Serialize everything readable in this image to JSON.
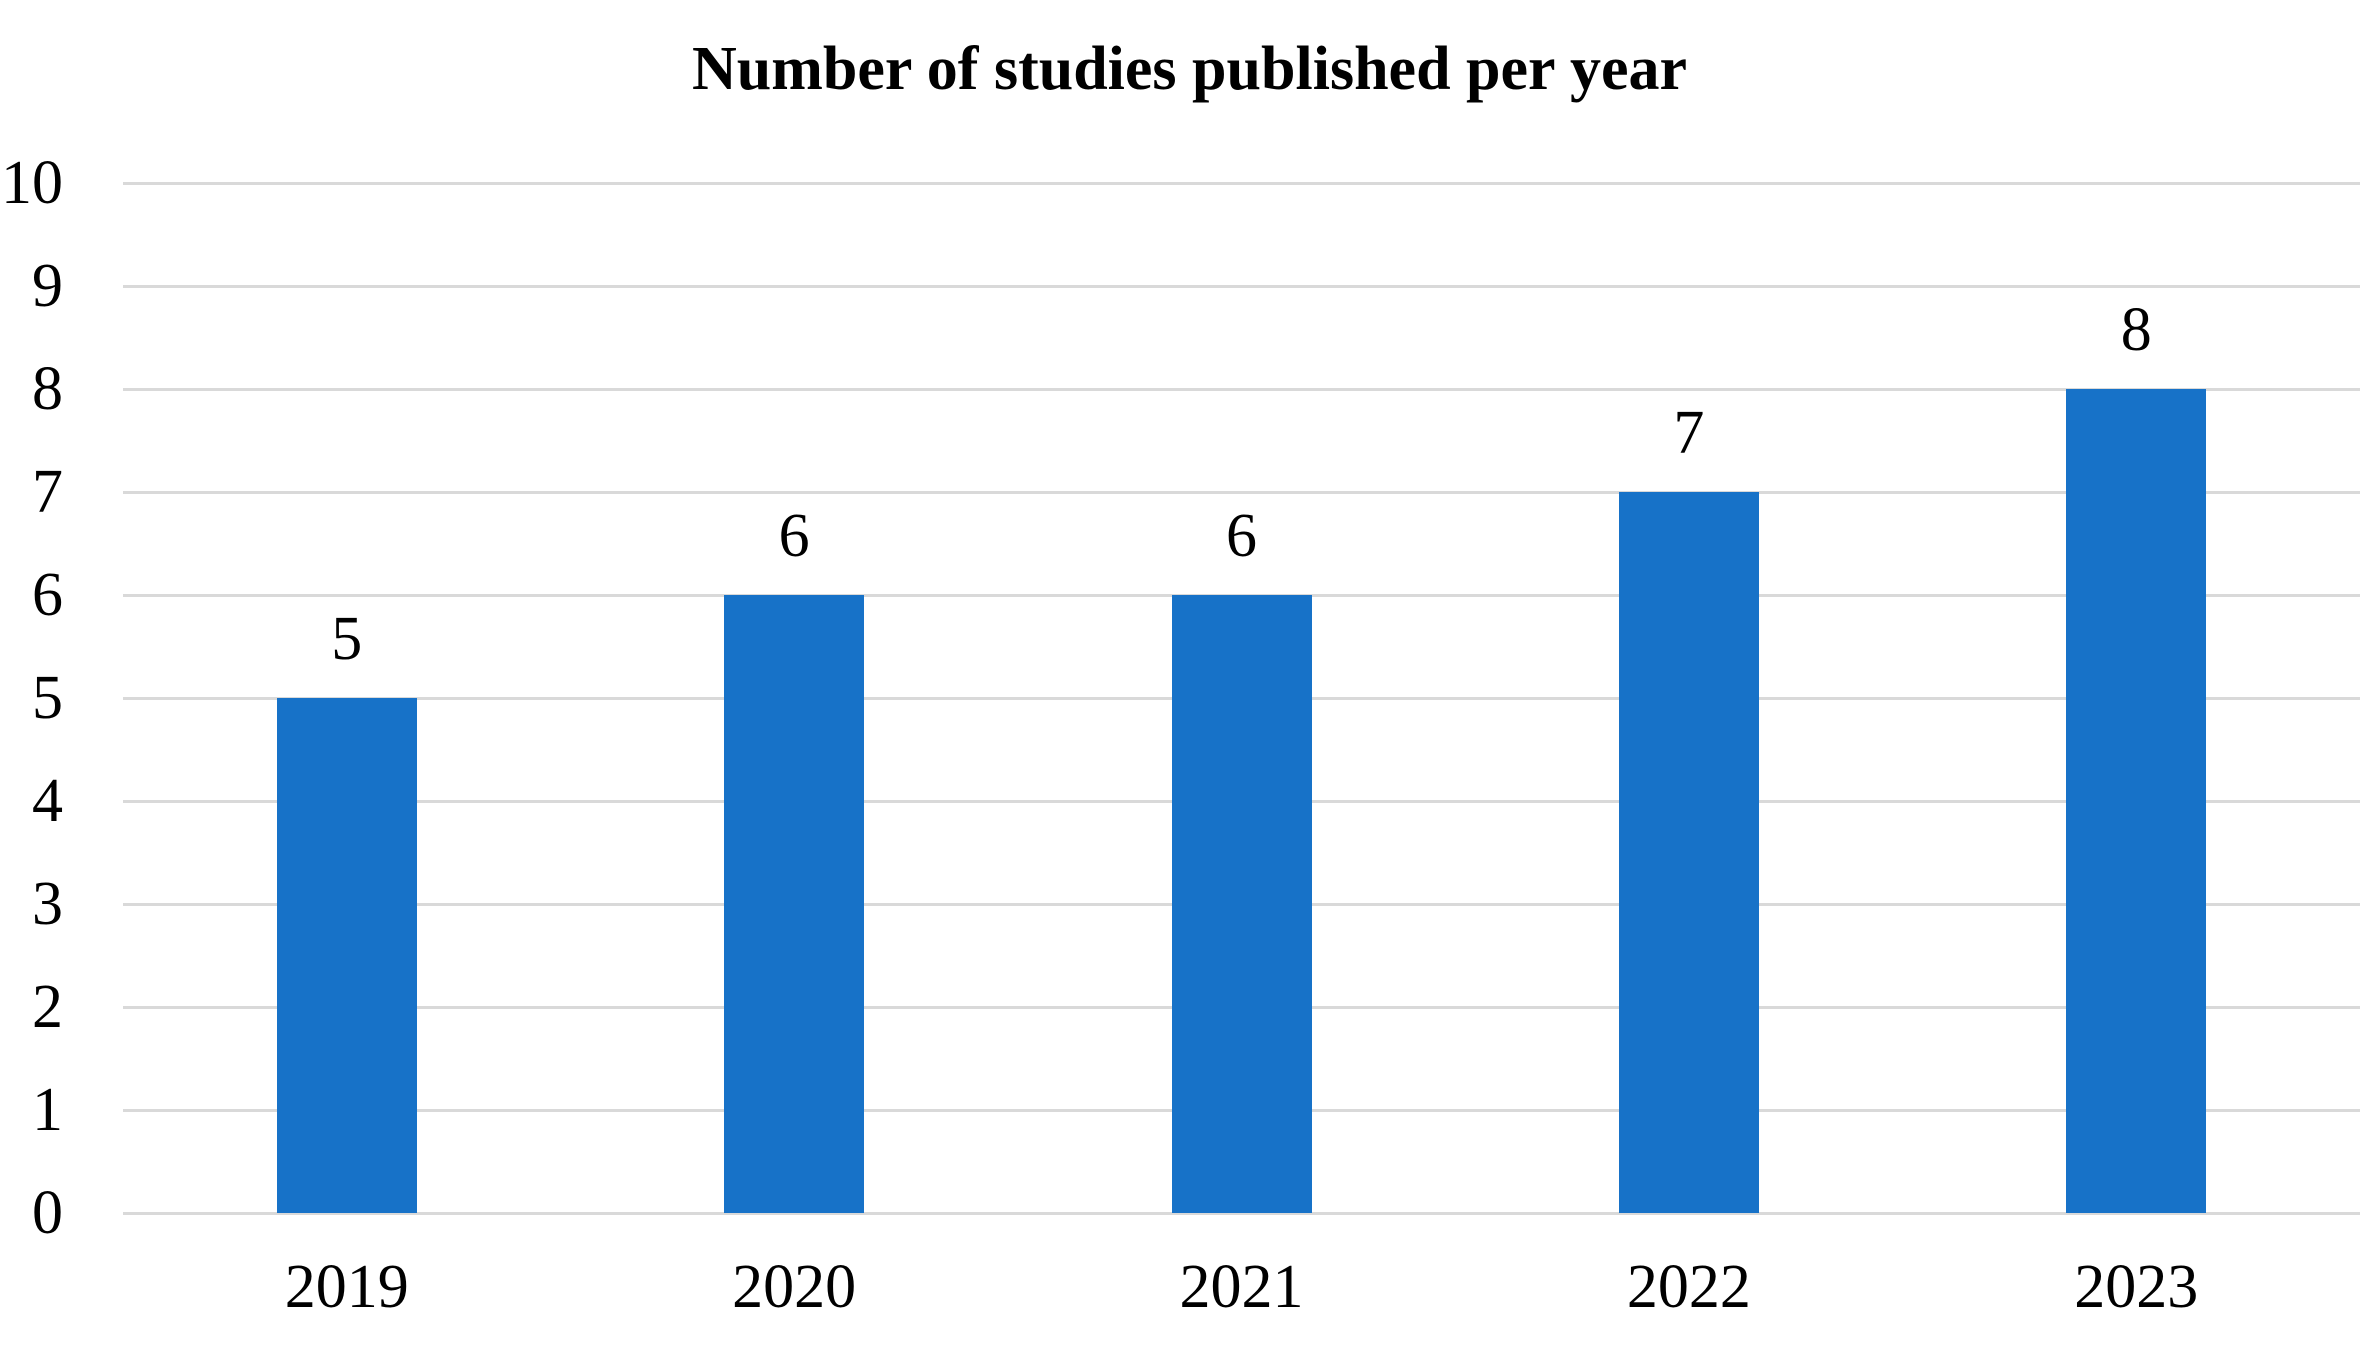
{
  "chart_data": {
    "type": "bar",
    "title": "Number of studies published per year",
    "categories": [
      "2019",
      "2020",
      "2021",
      "2022",
      "2023"
    ],
    "values": [
      5,
      6,
      6,
      7,
      8
    ],
    "yticks": [
      0,
      1,
      2,
      3,
      4,
      5,
      6,
      7,
      8,
      9,
      10
    ],
    "ylim": [
      0,
      10
    ],
    "xlabel": "",
    "ylabel": "",
    "show_data_labels": true,
    "legend": "none",
    "grid": "horizontal",
    "colors": {
      "bar": "#1772C8",
      "gridline": "#D9D9D9",
      "text": "#000000",
      "background": "#FFFFFF"
    }
  }
}
